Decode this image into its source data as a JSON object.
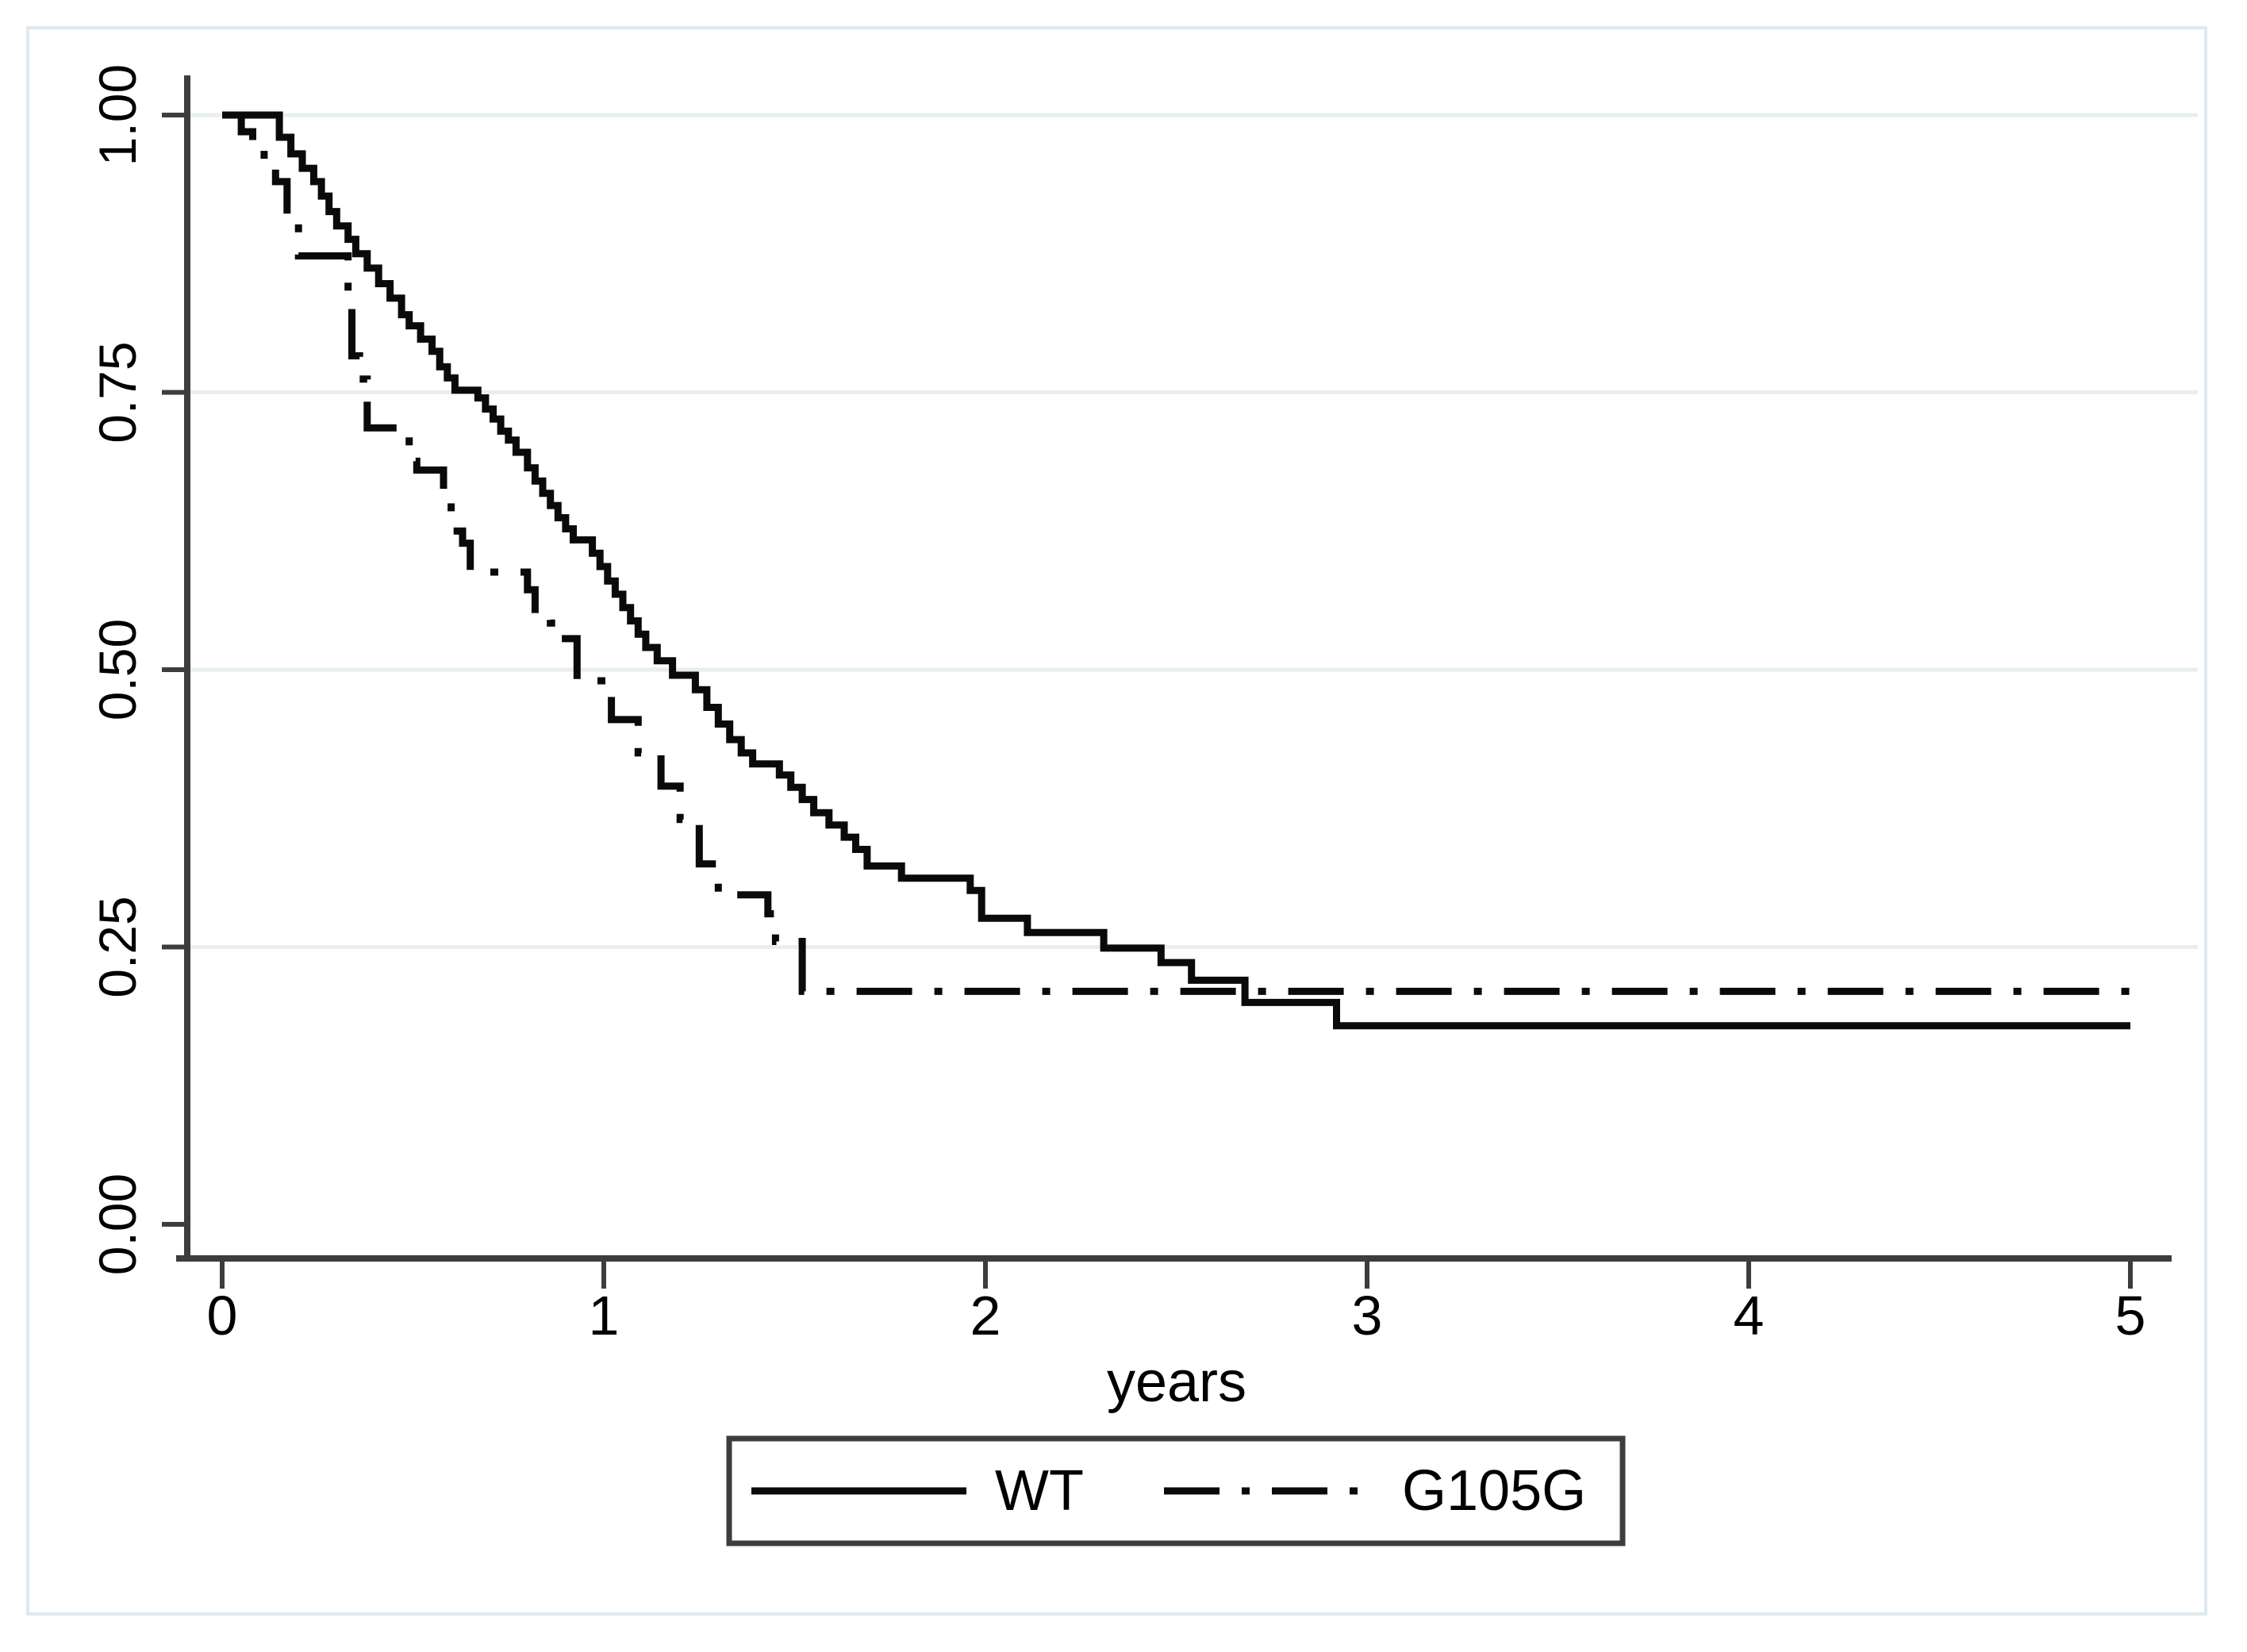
{
  "figure": {
    "kind": "kaplan-meier-survival-plot",
    "background_color": "#ffffff",
    "frame_color": "#e0e9f0",
    "grid_color": "#e8eef2",
    "axis_color": "#3d3d3d",
    "curve_color": "#0a0a0a",
    "text_color": "#000000"
  },
  "axes": {
    "x_label": "years",
    "x_tick_labels": [
      "0",
      "1",
      "2",
      "3",
      "4",
      "5"
    ],
    "y_tick_labels": [
      "0.00",
      "0.25",
      "0.50",
      "0.75",
      "1.00"
    ]
  },
  "legend": {
    "entries": [
      {
        "label": "WT",
        "line_style": "solid"
      },
      {
        "label": "G105G",
        "line_style": "dash-dot"
      }
    ]
  },
  "chart_data": {
    "type": "line",
    "subtype": "step-survival",
    "title": "",
    "xlabel": "years",
    "ylabel": "",
    "xlim": [
      0,
      5
    ],
    "ylim": [
      0,
      1
    ],
    "x_ticks": [
      0,
      1,
      2,
      3,
      4,
      5
    ],
    "y_ticks": [
      0,
      0.25,
      0.5,
      0.75,
      1
    ],
    "grid": "horizontal",
    "legend_position": "bottom-center",
    "series": [
      {
        "name": "WT",
        "style": "solid",
        "color": "#0a0a0a",
        "steps": [
          [
            0,
            1.0
          ],
          [
            0.15,
            0.98
          ],
          [
            0.18,
            0.965
          ],
          [
            0.21,
            0.952
          ],
          [
            0.24,
            0.94
          ],
          [
            0.26,
            0.927
          ],
          [
            0.28,
            0.913
          ],
          [
            0.3,
            0.9
          ],
          [
            0.33,
            0.888
          ],
          [
            0.35,
            0.875
          ],
          [
            0.38,
            0.862
          ],
          [
            0.41,
            0.848
          ],
          [
            0.44,
            0.835
          ],
          [
            0.47,
            0.82
          ],
          [
            0.49,
            0.81
          ],
          [
            0.52,
            0.798
          ],
          [
            0.55,
            0.787
          ],
          [
            0.57,
            0.773
          ],
          [
            0.59,
            0.763
          ],
          [
            0.61,
            0.752
          ],
          [
            0.67,
            0.745
          ],
          [
            0.69,
            0.735
          ],
          [
            0.71,
            0.726
          ],
          [
            0.73,
            0.715
          ],
          [
            0.75,
            0.707
          ],
          [
            0.77,
            0.696
          ],
          [
            0.8,
            0.682
          ],
          [
            0.82,
            0.67
          ],
          [
            0.84,
            0.659
          ],
          [
            0.86,
            0.648
          ],
          [
            0.88,
            0.637
          ],
          [
            0.9,
            0.627
          ],
          [
            0.92,
            0.617
          ],
          [
            0.97,
            0.605
          ],
          [
            0.99,
            0.593
          ],
          [
            1.01,
            0.58
          ],
          [
            1.03,
            0.568
          ],
          [
            1.05,
            0.556
          ],
          [
            1.07,
            0.544
          ],
          [
            1.09,
            0.532
          ],
          [
            1.11,
            0.52
          ],
          [
            1.14,
            0.508
          ],
          [
            1.18,
            0.495
          ],
          [
            1.24,
            0.482
          ],
          [
            1.27,
            0.466
          ],
          [
            1.3,
            0.451
          ],
          [
            1.33,
            0.437
          ],
          [
            1.36,
            0.425
          ],
          [
            1.39,
            0.415
          ],
          [
            1.46,
            0.405
          ],
          [
            1.49,
            0.394
          ],
          [
            1.52,
            0.383
          ],
          [
            1.55,
            0.371
          ],
          [
            1.59,
            0.36
          ],
          [
            1.63,
            0.349
          ],
          [
            1.66,
            0.338
          ],
          [
            1.69,
            0.323
          ],
          [
            1.78,
            0.312
          ],
          [
            1.96,
            0.301
          ],
          [
            1.99,
            0.276
          ],
          [
            2.11,
            0.263
          ],
          [
            2.31,
            0.249
          ],
          [
            2.46,
            0.236
          ],
          [
            2.54,
            0.22
          ],
          [
            2.68,
            0.2
          ],
          [
            2.92,
            0.179
          ],
          [
            5.0,
            0.179
          ]
        ]
      },
      {
        "name": "G105G",
        "style": "dash-dot",
        "color": "#0a0a0a",
        "steps": [
          [
            0,
            1.0
          ],
          [
            0.05,
            0.985
          ],
          [
            0.08,
            0.97
          ],
          [
            0.11,
            0.955
          ],
          [
            0.14,
            0.94
          ],
          [
            0.17,
            0.905
          ],
          [
            0.2,
            0.873
          ],
          [
            0.33,
            0.838
          ],
          [
            0.34,
            0.783
          ],
          [
            0.36,
            0.762
          ],
          [
            0.38,
            0.718
          ],
          [
            0.49,
            0.688
          ],
          [
            0.51,
            0.68
          ],
          [
            0.58,
            0.656
          ],
          [
            0.6,
            0.625
          ],
          [
            0.63,
            0.614
          ],
          [
            0.65,
            0.588
          ],
          [
            0.8,
            0.572
          ],
          [
            0.82,
            0.549
          ],
          [
            0.86,
            0.542
          ],
          [
            0.89,
            0.528
          ],
          [
            0.93,
            0.49
          ],
          [
            1.02,
            0.455
          ],
          [
            1.09,
            0.425
          ],
          [
            1.15,
            0.395
          ],
          [
            1.2,
            0.365
          ],
          [
            1.25,
            0.325
          ],
          [
            1.3,
            0.297
          ],
          [
            1.43,
            0.28
          ],
          [
            1.45,
            0.255
          ],
          [
            1.52,
            0.21
          ],
          [
            5.0,
            0.21
          ]
        ]
      }
    ]
  }
}
